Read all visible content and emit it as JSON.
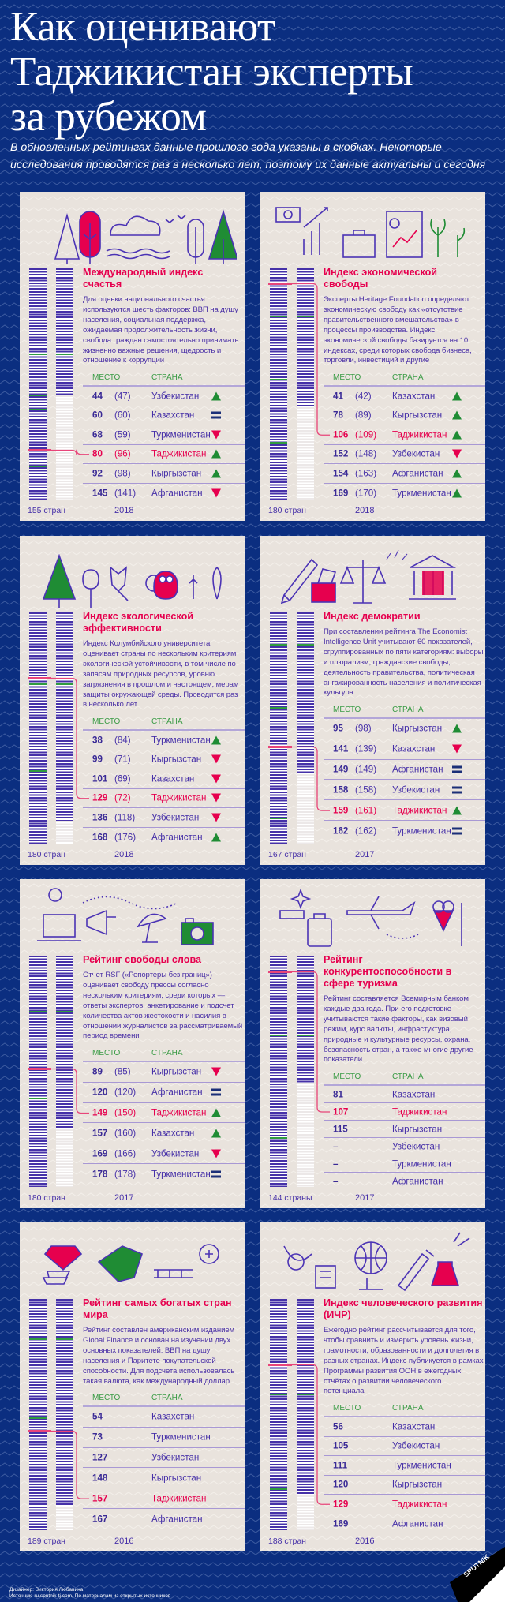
{
  "header": {
    "title_lines": [
      "Как оценивают",
      "Таджикистан эксперты",
      "за рубежом"
    ],
    "subtitle": "В обновленных рейтингах данные прошлого года указаны в скобках. Некоторые исследования проводятся раз в несколько лет, поэтому их данные актуальны и сегодня"
  },
  "colors": {
    "background": "#0b2e80",
    "card": "#e9e3dd",
    "title_accent": "#e6004e",
    "text": "#4630a8",
    "up": "#1f8c34",
    "down": "#e6004e",
    "equal": "#1b2f78"
  },
  "columns": {
    "place": "МЕСТО",
    "country": "СТРАНА"
  },
  "cards": [
    {
      "title": "Международный индекс счастья",
      "description": "Для оценки национального счастья используются шесть факторов: ВВП на душу населения, социальная поддержка, ожидаемая продолжительность жизни, свобода граждан самостоятельно принимать жизненно важные решения, щедрость и отношение к коррупции",
      "total": "155 стран",
      "year": "2018",
      "rows": [
        {
          "rank": "44",
          "prev": "(47)",
          "country": "Узбекистан",
          "trend": "up"
        },
        {
          "rank": "60",
          "prev": "(60)",
          "country": "Казахстан",
          "trend": "equal"
        },
        {
          "rank": "68",
          "prev": "(59)",
          "country": "Туркменистан",
          "trend": "down"
        },
        {
          "rank": "80",
          "prev": "(96)",
          "country": "Таджикистан",
          "trend": "up",
          "highlight": true
        },
        {
          "rank": "92",
          "prev": "(98)",
          "country": "Кыргызстан",
          "trend": "up"
        },
        {
          "rank": "145",
          "prev": "(141)",
          "country": "Афганистан",
          "trend": "down"
        }
      ]
    },
    {
      "title": "Индекс экономической свободы",
      "description": "Эксперты Heritage Foundation определяют экономическую свободу как «отсутствие правительственного вмешательства» в процессы производства. Индекс экономической свободы базируется на 10 индексах, среди которых свобода бизнеса, торговли, инвестиций и другие",
      "total": "180 стран",
      "year": "2018",
      "rows": [
        {
          "rank": "41",
          "prev": "(42)",
          "country": "Казахстан",
          "trend": "up"
        },
        {
          "rank": "78",
          "prev": "(89)",
          "country": "Кыргызстан",
          "trend": "up"
        },
        {
          "rank": "106",
          "prev": "(109)",
          "country": "Таджикистан",
          "trend": "up",
          "highlight": true
        },
        {
          "rank": "152",
          "prev": "(148)",
          "country": "Узбекистан",
          "trend": "down"
        },
        {
          "rank": "154",
          "prev": "(163)",
          "country": "Афганистан",
          "trend": "up"
        },
        {
          "rank": "169",
          "prev": "(170)",
          "country": "Туркменистан",
          "trend": "up"
        }
      ]
    },
    {
      "title": "Индекс экологической эффективности",
      "description": "Индекс Колумбийского университета оценивает страны по нескольким критериям экологической устойчивости, в том числе по запасам природных ресурсов, уровню загрязнения в прошлом и настоящем, мерам защиты окружающей среды. Проводится раз в несколько лет",
      "total": "180 стран",
      "year": "2018",
      "rows": [
        {
          "rank": "38",
          "prev": "(84)",
          "country": "Туркменистан",
          "trend": "up"
        },
        {
          "rank": "99",
          "prev": "(71)",
          "country": "Кыргызстан",
          "trend": "down"
        },
        {
          "rank": "101",
          "prev": "(69)",
          "country": "Казахстан",
          "trend": "down"
        },
        {
          "rank": "129",
          "prev": "(72)",
          "country": "Таджикистан",
          "trend": "down",
          "highlight": true
        },
        {
          "rank": "136",
          "prev": "(118)",
          "country": "Узбекистан",
          "trend": "down"
        },
        {
          "rank": "168",
          "prev": "(176)",
          "country": "Афганистан",
          "trend": "up"
        }
      ]
    },
    {
      "title": "Индекс демократии",
      "description": "При составлении рейтинга The Economist Intelligence Unit учитывают 60 показателей, сгруппированных по пяти категориям: выборы и плюрализм, гражданские свободы, деятельность правительства, политическая ангажированность населения и политическая культура",
      "total": "167 стран",
      "year": "2017",
      "rows": [
        {
          "rank": "95",
          "prev": "(98)",
          "country": "Кыргызстан",
          "trend": "up"
        },
        {
          "rank": "141",
          "prev": "(139)",
          "country": "Казахстан",
          "trend": "down"
        },
        {
          "rank": "149",
          "prev": "(149)",
          "country": "Афганистан",
          "trend": "equal"
        },
        {
          "rank": "158",
          "prev": "(158)",
          "country": "Узбекистан",
          "trend": "equal"
        },
        {
          "rank": "159",
          "prev": "(161)",
          "country": "Таджикистан",
          "trend": "up",
          "highlight": true
        },
        {
          "rank": "162",
          "prev": "(162)",
          "country": "Туркменистан",
          "trend": "equal"
        }
      ]
    },
    {
      "title": "Рейтинг свободы слова",
      "description": "Отчет RSF («Репортеры без границ») оценивает свободу прессы согласно нескольким критериям, среди которых — ответы экспертов, анкетирование и подсчет количества актов жестокости и насилия в отношении журналистов за рассматриваемый период времени",
      "total": "180 стран",
      "year": "2017",
      "rows": [
        {
          "rank": "89",
          "prev": "(85)",
          "country": "Кыргызстан",
          "trend": "down"
        },
        {
          "rank": "120",
          "prev": "(120)",
          "country": "Афганистан",
          "trend": "equal"
        },
        {
          "rank": "149",
          "prev": "(150)",
          "country": "Таджикистан",
          "trend": "up",
          "highlight": true
        },
        {
          "rank": "157",
          "prev": "(160)",
          "country": "Казахстан",
          "trend": "up"
        },
        {
          "rank": "169",
          "prev": "(166)",
          "country": "Узбекистан",
          "trend": "down"
        },
        {
          "rank": "178",
          "prev": "(178)",
          "country": "Туркменистан",
          "trend": "equal"
        }
      ]
    },
    {
      "title": "Рейтинг конкурентоспособности в сфере туризма",
      "description": "Рейтинг составляется Всемирным банком каждые два года. При его подготовке учитываются такие факторы, как визовый режим, курс валюты, инфрастуктура, природные и культурные ресурсы, охрана, безопасность стран, а также многие другие показатели",
      "total": "144 страны",
      "year": "2017",
      "rows": [
        {
          "rank": "81",
          "country": "Казахстан"
        },
        {
          "rank": "107",
          "country": "Таджикистан",
          "highlight": true
        },
        {
          "rank": "115",
          "country": "Кыргызстан"
        },
        {
          "rank": "–",
          "country": "Узбекистан"
        },
        {
          "rank": "–",
          "country": "Туркменистан"
        },
        {
          "rank": "–",
          "country": "Афганистан"
        }
      ]
    },
    {
      "title": "Рейтинг самых богатых стран мира",
      "description": "Рейтинг составлен американским изданием Global Finance и основан на изучении двух основных показателей: ВВП на душу населения и Паритете покупательской способности. Для подсчета использовалась такая валюта, как международный доллар",
      "total": "189 стран",
      "year": "2016",
      "rows": [
        {
          "rank": "54",
          "country": "Казахстан"
        },
        {
          "rank": "73",
          "country": "Туркменистан"
        },
        {
          "rank": "127",
          "country": "Узбекистан"
        },
        {
          "rank": "148",
          "country": "Кыргызстан"
        },
        {
          "rank": "157",
          "country": "Таджикистан",
          "highlight": true
        },
        {
          "rank": "167",
          "country": "Афганистан"
        }
      ]
    },
    {
      "title": "Индекс человеческого развития (ИЧР)",
      "description": "Ежегодно рейтинг рассчитывается для того, чтобы сравнить и измерить уровень жизни, грамотности, образованности и долголетия в разных странах. Индекс публикуется в рамках Программы развития ООН в ежегодных отчётах о развитии человеческого потенциала",
      "total": "188 стран",
      "year": "2016",
      "rows": [
        {
          "rank": "56",
          "country": "Казахстан"
        },
        {
          "rank": "105",
          "country": "Узбекистан"
        },
        {
          "rank": "111",
          "country": "Туркменистан"
        },
        {
          "rank": "120",
          "country": "Кыргызстан"
        },
        {
          "rank": "129",
          "country": "Таджикистан",
          "highlight": true
        },
        {
          "rank": "169",
          "country": "Афганистан"
        }
      ]
    }
  ],
  "footer": {
    "designer": "Дизайнер: Виктория Любавина",
    "source": "Источник: ru.sputnik-tj.com, По материалам из открытых источников",
    "logo": "SPUTNIK"
  }
}
